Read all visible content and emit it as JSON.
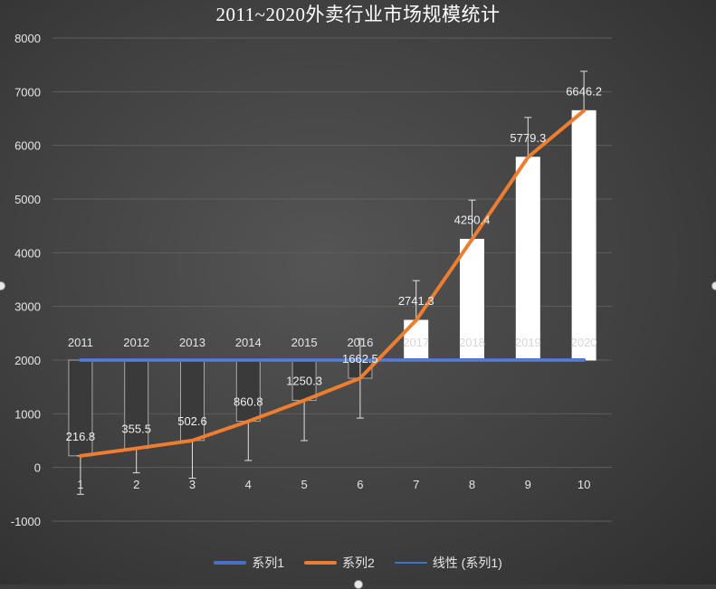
{
  "chart_data": {
    "type": "bar",
    "title": "2011~2020外卖行业市场规模统计",
    "x": [
      1,
      2,
      3,
      4,
      5,
      6,
      7,
      8,
      9,
      10
    ],
    "x_tick_labels": [
      "1",
      "2",
      "3",
      "4",
      "5",
      "6",
      "7",
      "8",
      "9",
      "10"
    ],
    "category_labels": [
      "2011",
      "2012",
      "2013",
      "2014",
      "2015",
      "2016",
      "2017",
      "2018",
      "2019",
      "2020"
    ],
    "ylim": [
      -1000,
      8000
    ],
    "yticks": [
      -1000,
      0,
      1000,
      2000,
      3000,
      4000,
      5000,
      6000,
      7000,
      8000
    ],
    "grid": true,
    "legend_position": "bottom",
    "series": [
      {
        "name": "系列1",
        "type": "line",
        "color": "#4472c4",
        "values": [
          2000,
          2000,
          2000,
          2000,
          2000,
          2000,
          2000,
          2000,
          2000,
          2000
        ]
      },
      {
        "name": "系列2",
        "type": "line",
        "color": "#ed7d31",
        "values": [
          216.8,
          355.5,
          502.6,
          860.8,
          1250.3,
          1662.5,
          2741.3,
          4250.4,
          5779.3,
          6646.2
        ],
        "data_labels": [
          "216.8",
          "355.5",
          "502.6",
          "860.8",
          "1250.3",
          "1662.5",
          "2741.3",
          "4250.4",
          "5779.3",
          "6646.2"
        ]
      },
      {
        "name": "线性 (系列1)",
        "type": "trendline",
        "color": "#4472c4",
        "values": [
          2000,
          2000,
          2000,
          2000,
          2000,
          2000,
          2000,
          2000,
          2000,
          2000
        ]
      }
    ],
    "up_down_bars": {
      "base": 2000,
      "down_color": "#3a3a3a",
      "up_color": "#ffffff"
    },
    "error_bars": [
      [
        -500,
        216.8
      ],
      [
        -100,
        355.5
      ],
      [
        -200,
        502.6
      ],
      [
        130,
        860.8
      ],
      [
        500,
        1250.3
      ],
      [
        920,
        2400
      ],
      [
        2741.3,
        3480
      ],
      [
        4250.4,
        4980
      ],
      [
        5779.3,
        6520
      ],
      [
        6646.2,
        7380
      ]
    ]
  }
}
